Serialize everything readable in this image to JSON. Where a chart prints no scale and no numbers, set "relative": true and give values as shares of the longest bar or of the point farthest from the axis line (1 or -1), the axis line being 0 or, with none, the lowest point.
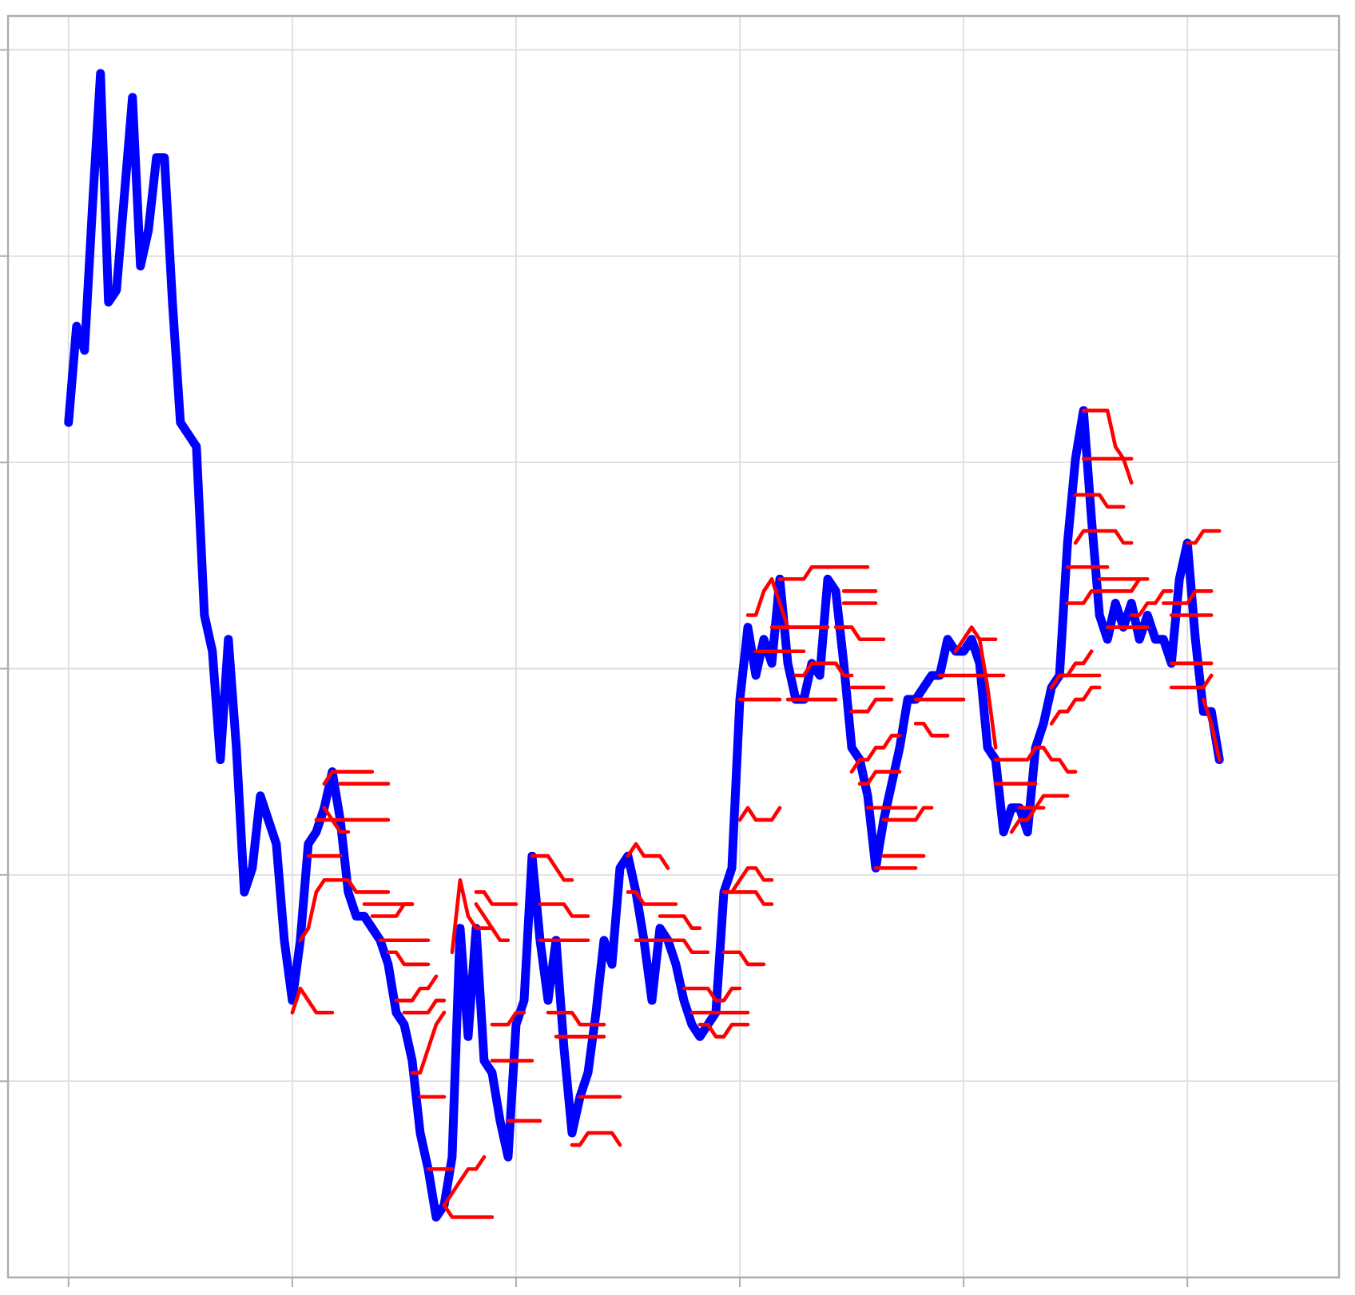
{
  "chart_data": {
    "type": "line",
    "relative": true,
    "grid": true,
    "categories": [
      null,
      null,
      null,
      null,
      null,
      null,
      null,
      null,
      null,
      null,
      null,
      null,
      null,
      null,
      null,
      null,
      null,
      null,
      null,
      null,
      null,
      null,
      null,
      null,
      null,
      null,
      null,
      null,
      null,
      null,
      null,
      null,
      null,
      null,
      null,
      null,
      null,
      null,
      null,
      null,
      null,
      null,
      null,
      null,
      null,
      null,
      null,
      null,
      null,
      null,
      null,
      null,
      null,
      null,
      null,
      null,
      null,
      null,
      null,
      null,
      null,
      null,
      null,
      null,
      null,
      null,
      null,
      null,
      null,
      null,
      null,
      null,
      null,
      null,
      null,
      null,
      null,
      null,
      null,
      null,
      null,
      null,
      null,
      null,
      null,
      null,
      null,
      null,
      null,
      null,
      null,
      null,
      null,
      null,
      null,
      null,
      null,
      null,
      null,
      null,
      null,
      null,
      null,
      null,
      null,
      null,
      null,
      null,
      null,
      null,
      null,
      null,
      null,
      null,
      null,
      null,
      null,
      null,
      null,
      null,
      null,
      null,
      null,
      null,
      null,
      null,
      null,
      null,
      null,
      null,
      null,
      null,
      null,
      null,
      null,
      null,
      null,
      null,
      null,
      null,
      null,
      null,
      null,
      null,
      null
    ],
    "series": [
      {
        "color": "#0000ff",
        "values": [
          0.71,
          0.79,
          0.77,
          0.89,
          1.0,
          0.81,
          0.82,
          0.9,
          0.98,
          0.84,
          0.87,
          0.93,
          0.93,
          0.81,
          0.71,
          0.7,
          0.69,
          0.55,
          0.52,
          0.43,
          0.53,
          0.44,
          0.32,
          0.34,
          0.4,
          0.38,
          0.36,
          0.28,
          0.23,
          0.28,
          0.36,
          0.37,
          0.39,
          0.42,
          0.38,
          0.32,
          0.3,
          0.3,
          0.29,
          0.28,
          0.26,
          0.22,
          0.21,
          0.18,
          0.12,
          0.09,
          0.05,
          0.06,
          0.1,
          0.29,
          0.2,
          0.29,
          0.18,
          0.17,
          0.13,
          0.1,
          0.21,
          0.23,
          0.35,
          0.28,
          0.23,
          0.28,
          0.19,
          0.12,
          0.15,
          0.17,
          0.22,
          0.28,
          0.26,
          0.34,
          0.35,
          0.32,
          0.28,
          0.23,
          0.29,
          0.28,
          0.26,
          0.23,
          0.21,
          0.2,
          0.21,
          0.22,
          0.32,
          0.34,
          0.48,
          0.54,
          0.5,
          0.53,
          0.51,
          0.58,
          0.51,
          0.48,
          0.48,
          0.51,
          0.5,
          0.58,
          0.57,
          0.51,
          0.44,
          0.43,
          0.4,
          0.34,
          0.38,
          0.41,
          0.44,
          0.48,
          0.48,
          0.49,
          0.5,
          0.5,
          0.53,
          0.52,
          0.52,
          0.53,
          0.51,
          0.44,
          0.43,
          0.37,
          0.39,
          0.39,
          0.37,
          0.44,
          0.46,
          0.49,
          0.5,
          0.61,
          0.68,
          0.72,
          0.63,
          0.55,
          0.53,
          0.56,
          0.54,
          0.56,
          0.53,
          0.55,
          0.53,
          0.53,
          0.51,
          0.58,
          0.61,
          0.53,
          0.47,
          0.47,
          0.43
        ]
      },
      {
        "color": "#ff0000",
        "values": [
          null,
          null,
          null,
          null,
          null,
          null,
          null,
          null,
          null,
          null,
          null,
          null,
          null,
          null,
          null,
          null,
          null,
          null,
          null,
          null,
          null,
          null,
          null,
          null,
          null,
          null,
          null,
          null,
          0.22,
          0.24,
          0.23,
          0.22,
          0.22,
          0.22,
          null,
          null,
          null,
          0.31,
          0.31,
          0.31,
          0.31,
          0.31,
          0.31,
          0.31,
          null,
          0.09,
          0.09,
          0.09,
          0.09,
          null,
          null,
          null,
          null,
          0.18,
          0.18,
          0.18,
          0.18,
          0.18,
          0.18,
          null,
          null,
          null,
          null,
          null,
          0.15,
          0.15,
          0.15,
          0.15,
          0.15,
          0.15,
          null,
          null,
          null,
          null,
          null,
          null,
          null,
          null,
          null,
          null,
          null,
          null,
          0.27,
          0.27,
          0.27,
          0.26,
          0.26,
          0.26,
          null,
          null,
          0.48,
          0.48,
          0.48,
          0.48,
          0.48,
          0.48,
          0.48,
          null,
          null,
          0.41,
          0.41,
          0.42,
          0.42,
          0.42,
          0.42,
          null,
          null,
          null,
          null,
          null,
          null,
          null,
          null,
          null,
          null,
          null,
          0.43,
          0.43,
          0.43,
          0.43,
          0.43,
          0.44,
          null,
          null,
          null,
          null,
          null,
          0.72,
          0.72,
          0.72,
          0.72,
          0.69,
          0.68,
          0.66,
          null,
          null,
          null,
          null,
          null,
          null,
          0.61,
          0.61,
          0.62,
          0.62,
          0.62
        ]
      },
      {
        "color": "#ff0000",
        "values": [
          null,
          null,
          null,
          null,
          null,
          null,
          null,
          null,
          null,
          null,
          null,
          null,
          null,
          null,
          null,
          null,
          null,
          null,
          null,
          null,
          null,
          null,
          null,
          null,
          null,
          null,
          null,
          null,
          null,
          0.28,
          0.29,
          0.32,
          0.33,
          0.33,
          0.33,
          0.33,
          0.32,
          0.32,
          0.32,
          0.32,
          0.32,
          null,
          0.22,
          0.22,
          0.22,
          0.22,
          0.23,
          0.23,
          null,
          null,
          null,
          0.32,
          0.32,
          0.31,
          0.31,
          0.31,
          0.31,
          null,
          null,
          null,
          0.22,
          0.22,
          0.22,
          0.22,
          0.21,
          0.21,
          0.21,
          0.21,
          null,
          null,
          null,
          null,
          null,
          null,
          null,
          null,
          null,
          0.24,
          0.24,
          0.24,
          0.24,
          0.23,
          0.23,
          0.24,
          0.24,
          null,
          0.52,
          0.52,
          0.52,
          0.52,
          0.52,
          0.52,
          0.52,
          null,
          null,
          null,
          null,
          null,
          0.49,
          0.49,
          0.49,
          0.49,
          0.49,
          null,
          null,
          null,
          null,
          null,
          null,
          null,
          null,
          0.52,
          0.53,
          0.54,
          0.53,
          0.53,
          0.53,
          null,
          null,
          null,
          null,
          null,
          null,
          null,
          null,
          0.56,
          0.56,
          0.56,
          0.57,
          0.57,
          0.57,
          0.57,
          0.57,
          0.57,
          0.58,
          0.58,
          null,
          null,
          null,
          null,
          null,
          null,
          null,
          null,
          null
        ]
      },
      {
        "color": "#ff0000",
        "values": [
          null,
          null,
          null,
          null,
          null,
          null,
          null,
          null,
          null,
          null,
          null,
          null,
          null,
          null,
          null,
          null,
          null,
          null,
          null,
          null,
          null,
          null,
          null,
          null,
          null,
          null,
          null,
          null,
          null,
          null,
          0.35,
          0.35,
          0.35,
          0.35,
          0.35,
          null,
          null,
          null,
          0.3,
          0.3,
          0.3,
          0.3,
          0.31,
          0.31,
          null,
          null,
          null,
          0.06,
          0.05,
          0.05,
          0.05,
          0.05,
          0.05,
          0.05,
          null,
          null,
          null,
          null,
          null,
          0.31,
          0.31,
          0.31,
          0.31,
          0.3,
          0.3,
          0.3,
          null,
          null,
          null,
          null,
          null,
          0.28,
          0.28,
          0.28,
          0.28,
          0.28,
          0.28,
          0.28,
          0.27,
          0.27,
          0.27,
          null,
          null,
          null,
          0.48,
          0.48,
          0.48,
          0.48,
          0.48,
          0.48,
          null,
          null,
          null,
          null,
          null,
          null,
          null,
          0.57,
          0.57,
          0.57,
          0.57,
          0.57,
          null,
          null,
          null,
          null,
          0.46,
          0.46,
          0.45,
          0.45,
          0.45,
          null,
          null,
          null,
          null,
          null,
          null,
          null,
          null,
          null,
          null,
          null,
          null,
          null,
          0.5,
          0.5,
          0.5,
          0.5,
          0.5,
          0.5,
          null,
          null,
          null,
          null,
          null,
          null,
          null,
          0.56,
          0.56,
          0.56,
          0.56,
          0.57,
          0.57,
          0.57,
          null
        ]
      },
      {
        "color": "#ff0000",
        "values": [
          null,
          null,
          null,
          null,
          null,
          null,
          null,
          null,
          null,
          null,
          null,
          null,
          null,
          null,
          null,
          null,
          null,
          null,
          null,
          null,
          null,
          null,
          null,
          null,
          null,
          null,
          null,
          null,
          null,
          null,
          null,
          0.38,
          0.38,
          0.38,
          0.38,
          0.38,
          0.38,
          0.38,
          0.38,
          0.38,
          0.38,
          null,
          null,
          0.17,
          0.17,
          0.19,
          0.21,
          0.22,
          null,
          null,
          null,
          0.31,
          0.3,
          0.29,
          0.28,
          0.28,
          null,
          null,
          null,
          null,
          null,
          0.2,
          0.2,
          0.2,
          0.2,
          0.2,
          0.2,
          0.2,
          null,
          null,
          null,
          null,
          null,
          null,
          null,
          null,
          null,
          null,
          0.22,
          0.22,
          0.22,
          0.22,
          0.22,
          0.22,
          0.22,
          0.22,
          null,
          null,
          0.54,
          0.54,
          0.54,
          0.54,
          0.54,
          0.54,
          0.54,
          0.54,
          null,
          null,
          0.47,
          0.47,
          0.47,
          0.48,
          0.48,
          0.48,
          null,
          null,
          null,
          null,
          null,
          null,
          null,
          null,
          null,
          null,
          0.53,
          0.49,
          0.44,
          null,
          null,
          null,
          null,
          null,
          null,
          null,
          null,
          null,
          0.65,
          0.65,
          0.65,
          0.65,
          0.64,
          0.64,
          0.64,
          null,
          null,
          null,
          null,
          null,
          0.51,
          0.51,
          0.51,
          0.51,
          0.51,
          0.51,
          null
        ]
      },
      {
        "color": "#ff0000",
        "values": [
          null,
          null,
          null,
          null,
          null,
          null,
          null,
          null,
          null,
          null,
          null,
          null,
          null,
          null,
          null,
          null,
          null,
          null,
          null,
          null,
          null,
          null,
          null,
          null,
          null,
          null,
          null,
          null,
          null,
          null,
          null,
          null,
          0.41,
          0.42,
          0.42,
          0.42,
          0.42,
          0.42,
          0.42,
          null,
          0.27,
          0.27,
          0.26,
          0.26,
          0.26,
          0.26,
          null,
          0.06,
          0.07,
          0.08,
          0.09,
          0.09,
          0.1,
          null,
          null,
          0.13,
          0.13,
          0.13,
          0.13,
          0.13,
          null,
          null,
          null,
          null,
          null,
          null,
          null,
          null,
          null,
          null,
          0.32,
          0.32,
          0.31,
          0.31,
          0.31,
          0.31,
          0.31,
          null,
          null,
          null,
          null,
          null,
          0.32,
          0.32,
          0.32,
          0.32,
          0.32,
          0.31,
          0.31,
          null,
          null,
          0.5,
          0.5,
          0.51,
          0.51,
          0.51,
          0.51,
          0.5,
          0.5,
          null,
          0.39,
          0.39,
          0.39,
          0.39,
          0.39,
          0.39,
          0.39,
          null,
          null,
          null,
          null,
          null,
          null,
          null,
          null,
          null,
          null,
          null,
          0.37,
          0.38,
          0.38,
          0.39,
          0.39,
          null,
          null,
          null,
          null,
          0.68,
          0.68,
          0.68,
          0.68,
          0.68,
          0.68,
          0.68,
          null,
          null,
          null,
          null,
          null,
          null,
          null,
          null,
          0.48,
          0.46,
          0.43
        ]
      },
      {
        "color": "#ff0000",
        "values": [
          null,
          null,
          null,
          null,
          null,
          null,
          null,
          null,
          null,
          null,
          null,
          null,
          null,
          null,
          null,
          null,
          null,
          null,
          null,
          null,
          null,
          null,
          null,
          null,
          null,
          null,
          null,
          null,
          null,
          null,
          null,
          null,
          0.39,
          0.38,
          0.37,
          0.37,
          null,
          null,
          null,
          0.28,
          0.28,
          0.28,
          0.28,
          0.28,
          0.28,
          0.28,
          null,
          null,
          0.27,
          0.33,
          0.3,
          0.29,
          0.29,
          0.29,
          null,
          null,
          null,
          null,
          null,
          0.28,
          0.28,
          0.28,
          0.28,
          0.28,
          0.28,
          0.28,
          null,
          null,
          null,
          null,
          null,
          null,
          null,
          null,
          0.3,
          0.3,
          0.3,
          0.3,
          0.29,
          0.29,
          null,
          null,
          null,
          null,
          0.38,
          0.39,
          0.38,
          0.38,
          0.38,
          0.39,
          null,
          null,
          null,
          null,
          null,
          null,
          0.54,
          0.54,
          0.54,
          0.53,
          0.53,
          0.53,
          0.53,
          null,
          null,
          null,
          0.48,
          0.48,
          0.48,
          0.48,
          0.48,
          0.48,
          0.48,
          null,
          null,
          null,
          null,
          null,
          null,
          null,
          null,
          null,
          null,
          0.49,
          0.5,
          0.5,
          0.51,
          0.51,
          0.52,
          null,
          null,
          null,
          null,
          null,
          null,
          null,
          null,
          null,
          null,
          null,
          null,
          null,
          null,
          null,
          null
        ]
      },
      {
        "color": "#ff0000",
        "values": [
          null,
          null,
          null,
          null,
          null,
          null,
          null,
          null,
          null,
          null,
          null,
          null,
          null,
          null,
          null,
          null,
          null,
          null,
          null,
          null,
          null,
          null,
          null,
          null,
          null,
          null,
          null,
          null,
          null,
          null,
          null,
          null,
          null,
          null,
          0.41,
          0.41,
          0.41,
          0.41,
          0.41,
          0.41,
          0.41,
          null,
          null,
          null,
          0.15,
          0.15,
          0.15,
          0.15,
          null,
          null,
          null,
          null,
          null,
          0.21,
          0.21,
          0.21,
          0.22,
          0.22,
          null,
          null,
          null,
          null,
          null,
          0.11,
          0.11,
          0.12,
          0.12,
          0.12,
          0.12,
          0.11,
          null,
          null,
          null,
          null,
          null,
          null,
          null,
          null,
          null,
          0.21,
          0.21,
          0.2,
          0.2,
          0.21,
          0.21,
          0.21,
          null,
          null,
          null,
          0.58,
          0.58,
          0.58,
          0.58,
          0.59,
          0.59,
          0.59,
          null,
          null,
          0.42,
          0.43,
          0.43,
          0.44,
          0.44,
          0.45,
          0.45,
          null,
          null,
          null,
          null,
          null,
          null,
          null,
          null,
          null,
          null,
          null,
          0.41,
          0.41,
          0.41,
          0.41,
          0.41,
          0.41,
          null,
          null,
          null,
          null,
          0.61,
          0.62,
          0.62,
          0.62,
          0.62,
          0.62,
          0.61,
          0.61,
          null,
          null,
          null,
          null,
          0.49,
          0.49,
          0.49,
          0.49,
          0.49,
          0.5,
          null
        ]
      },
      {
        "color": "#ff0000",
        "values": [
          null,
          null,
          null,
          null,
          null,
          null,
          null,
          null,
          null,
          null,
          null,
          null,
          null,
          null,
          null,
          null,
          null,
          null,
          null,
          null,
          null,
          null,
          null,
          null,
          null,
          null,
          null,
          null,
          null,
          null,
          null,
          null,
          null,
          null,
          null,
          null,
          null,
          null,
          null,
          null,
          null,
          0.23,
          0.23,
          0.23,
          0.24,
          0.24,
          0.25,
          null,
          null,
          null,
          null,
          null,
          null,
          null,
          null,
          null,
          null,
          null,
          0.35,
          0.35,
          0.35,
          0.34,
          0.33,
          0.33,
          null,
          null,
          null,
          null,
          null,
          null,
          0.35,
          0.36,
          0.35,
          0.35,
          0.35,
          0.34,
          null,
          null,
          null,
          null,
          null,
          null,
          null,
          0.32,
          0.33,
          0.34,
          0.34,
          0.33,
          0.33,
          null,
          null,
          null,
          null,
          null,
          null,
          0.59,
          0.59,
          0.59,
          0.59,
          0.59,
          0.59,
          null,
          0.38,
          0.38,
          0.38,
          0.38,
          0.38,
          0.39,
          0.39,
          null,
          null,
          null,
          null,
          null,
          null,
          null,
          null,
          null,
          null,
          null,
          null,
          0.44,
          0.44,
          0.43,
          0.43,
          0.42,
          0.42,
          null,
          null,
          null,
          0.54,
          0.54,
          0.54,
          0.54,
          0.54,
          0.54,
          null,
          null,
          null,
          null,
          null,
          null,
          null,
          null,
          null
        ]
      },
      {
        "color": "#ff0000",
        "values": [
          null,
          null,
          null,
          null,
          null,
          null,
          null,
          null,
          null,
          null,
          null,
          null,
          null,
          null,
          null,
          null,
          null,
          null,
          null,
          null,
          null,
          null,
          null,
          null,
          null,
          null,
          null,
          null,
          null,
          null,
          null,
          null,
          null,
          null,
          null,
          null,
          null,
          null,
          null,
          null,
          null,
          null,
          null,
          null,
          null,
          null,
          null,
          null,
          null,
          null,
          null,
          null,
          null,
          null,
          null,
          null,
          null,
          null,
          null,
          null,
          null,
          null,
          null,
          null,
          null,
          null,
          null,
          null,
          null,
          null,
          null,
          null,
          null,
          null,
          null,
          null,
          null,
          null,
          null,
          null,
          null,
          null,
          null,
          null,
          null,
          0.55,
          0.55,
          0.57,
          0.58,
          0.56,
          0.54,
          null,
          null,
          null,
          null,
          null,
          null,
          0.56,
          0.56,
          0.56,
          0.56,
          0.56,
          null,
          null,
          null,
          null,
          null,
          null,
          null,
          0.5,
          0.5,
          0.5,
          0.5,
          0.5,
          0.5,
          0.5,
          0.5,
          0.5,
          null,
          null,
          null,
          null,
          null,
          null,
          null,
          0.59,
          0.59,
          0.59,
          0.59,
          0.59,
          0.59,
          null,
          null,
          null,
          null,
          null,
          null,
          null,
          0.55,
          0.55,
          0.55,
          0.55,
          0.55,
          0.55,
          null
        ]
      },
      {
        "color": "#ff0000",
        "values": [
          null,
          null,
          null,
          null,
          null,
          null,
          null,
          null,
          null,
          null,
          null,
          null,
          null,
          null,
          null,
          null,
          null,
          null,
          null,
          null,
          null,
          null,
          null,
          null,
          null,
          null,
          null,
          null,
          null,
          null,
          null,
          null,
          null,
          null,
          null,
          null,
          null,
          null,
          null,
          null,
          null,
          null,
          null,
          null,
          null,
          null,
          null,
          null,
          null,
          null,
          null,
          null,
          null,
          null,
          null,
          null,
          null,
          null,
          null,
          null,
          null,
          null,
          null,
          null,
          null,
          null,
          null,
          null,
          null,
          null,
          null,
          null,
          null,
          null,
          null,
          null,
          null,
          null,
          null,
          null,
          null,
          null,
          null,
          null,
          null,
          null,
          null,
          null,
          null,
          null,
          null,
          null,
          null,
          null,
          null,
          null,
          null,
          null,
          null,
          null,
          null,
          0.34,
          0.34,
          0.34,
          0.34,
          0.34,
          0.34,
          null,
          null,
          null,
          null,
          null,
          null,
          null,
          null,
          null,
          null,
          null,
          null,
          0.39,
          0.39,
          0.39,
          0.4,
          0.4,
          0.4,
          0.4,
          null,
          null,
          null,
          0.58,
          0.58,
          0.58,
          0.58,
          0.58,
          0.58,
          null,
          null,
          null,
          null,
          null,
          null,
          null,
          null,
          null,
          null
        ]
      },
      {
        "color": "#ff0000",
        "values": [
          null,
          null,
          null,
          null,
          null,
          null,
          null,
          null,
          null,
          null,
          null,
          null,
          null,
          null,
          null,
          null,
          null,
          null,
          null,
          null,
          null,
          null,
          null,
          null,
          null,
          null,
          null,
          null,
          null,
          null,
          null,
          null,
          null,
          null,
          null,
          null,
          null,
          null,
          null,
          null,
          null,
          null,
          null,
          null,
          null,
          null,
          null,
          null,
          null,
          null,
          null,
          null,
          null,
          null,
          null,
          null,
          null,
          null,
          null,
          null,
          null,
          null,
          null,
          null,
          null,
          null,
          null,
          null,
          null,
          null,
          null,
          null,
          null,
          null,
          null,
          null,
          null,
          null,
          null,
          null,
          null,
          null,
          null,
          null,
          null,
          null,
          null,
          null,
          null,
          null,
          null,
          null,
          null,
          null,
          null,
          null,
          null,
          null,
          null,
          null,
          null,
          null,
          0.35,
          0.35,
          0.35,
          0.35,
          0.35,
          0.35,
          null,
          null,
          null,
          null,
          null,
          null,
          null,
          null,
          null,
          null,
          null,
          null,
          null,
          null,
          null,
          0.46,
          0.47,
          0.47,
          0.48,
          0.48,
          0.49,
          0.49,
          null,
          null,
          null,
          0.55,
          0.55,
          0.56,
          0.56,
          0.57,
          0.57,
          null,
          null,
          null,
          null,
          null,
          null
        ]
      }
    ]
  }
}
